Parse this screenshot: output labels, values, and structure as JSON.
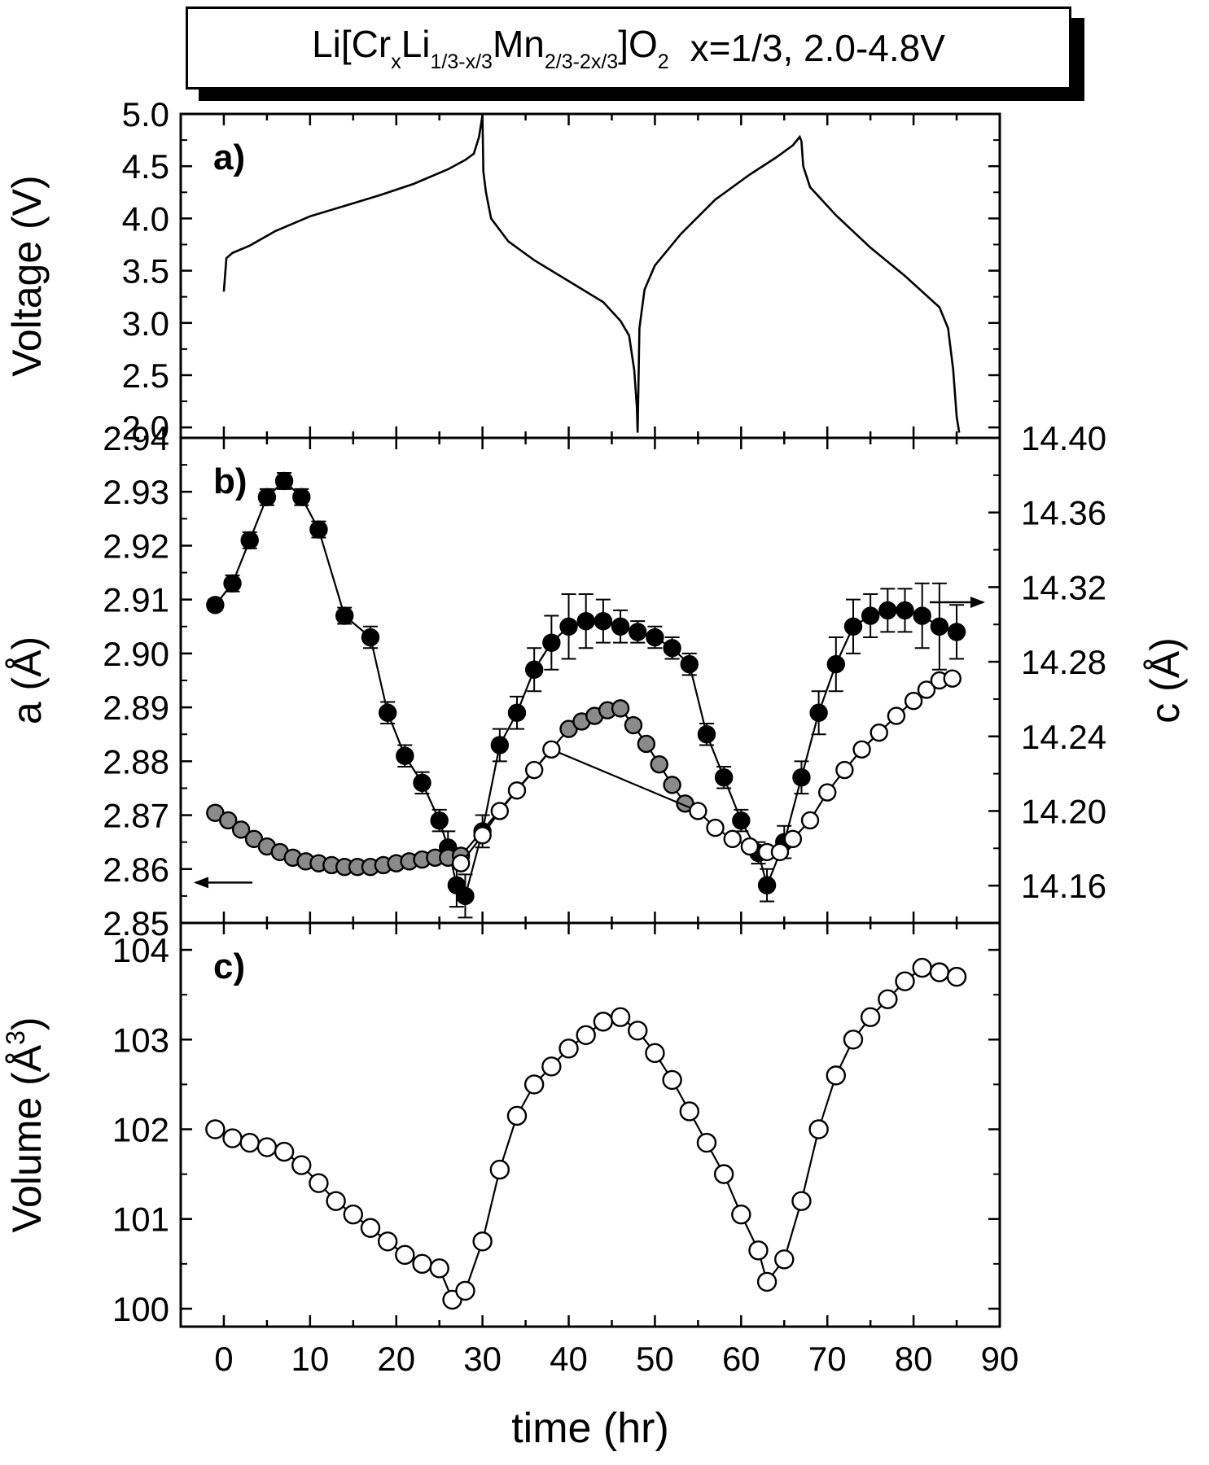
{
  "title": {
    "prefix": "Li[Cr",
    "sub1": "x",
    "mid1": "Li",
    "sub2": "1/3-x/3",
    "mid2": "Mn",
    "sub3": "2/3-2x/3",
    "mid3": "]O",
    "sub4": "2",
    "suffix": "x=1/3, 2.0-4.8V"
  },
  "chart_data": [
    {
      "panel_label": "a)",
      "type": "line",
      "ylabel": "Voltage (V)",
      "ylim": [
        1.9,
        5.0
      ],
      "yticks": [
        "2.0",
        "2.5",
        "3.0",
        "3.5",
        "4.0",
        "4.5",
        "5.0"
      ],
      "xlim": [
        -5,
        90
      ],
      "series": [
        {
          "x": [
            0,
            0.3,
            1,
            3,
            6,
            10,
            14,
            18,
            22,
            26,
            28,
            29,
            29.6,
            30,
            30.1,
            30.4,
            31,
            33,
            36,
            40,
            44,
            46,
            47,
            47.6,
            47.9,
            48,
            48.2,
            48.8,
            50,
            53,
            57,
            61,
            64,
            66,
            66.8,
            67,
            67.2,
            68,
            71,
            75,
            79,
            83,
            84,
            84.6,
            85,
            85.3
          ],
          "y": [
            3.3,
            3.62,
            3.67,
            3.74,
            3.88,
            4.02,
            4.12,
            4.22,
            4.33,
            4.47,
            4.56,
            4.62,
            4.78,
            4.99,
            4.45,
            4.25,
            4.0,
            3.78,
            3.6,
            3.4,
            3.2,
            3.02,
            2.88,
            2.55,
            2.2,
            1.95,
            2.95,
            3.32,
            3.55,
            3.85,
            4.18,
            4.42,
            4.58,
            4.7,
            4.78,
            4.74,
            4.5,
            4.3,
            4.03,
            3.72,
            3.45,
            3.15,
            2.95,
            2.55,
            2.1,
            1.95
          ]
        }
      ]
    },
    {
      "panel_label": "b)",
      "type": "scatter",
      "ylabel": "a (Å)",
      "ylabel_right": "c (Å)",
      "ylim": [
        2.85,
        2.94
      ],
      "yticks": [
        "2.85",
        "2.86",
        "2.87",
        "2.88",
        "2.89",
        "2.90",
        "2.91",
        "2.92",
        "2.93",
        "2.94"
      ],
      "ylim_right": [
        14.14,
        14.4
      ],
      "yticks_right": [
        "14.16",
        "14.20",
        "14.24",
        "14.28",
        "14.32",
        "14.36",
        "14.40"
      ],
      "xlim": [
        -5,
        90
      ],
      "series": [
        {
          "axis": "left",
          "marker": "filled",
          "x": [
            -1,
            1,
            3,
            5,
            7,
            9,
            11,
            14,
            17,
            19,
            21,
            23,
            25,
            26,
            27,
            28,
            30,
            32,
            34,
            36,
            38,
            40,
            42,
            44,
            46,
            48,
            50,
            52,
            54,
            56,
            58,
            60,
            62,
            63,
            65,
            67,
            69,
            71,
            73,
            75,
            77,
            79,
            81,
            83,
            85
          ],
          "y": [
            2.909,
            2.913,
            2.921,
            2.929,
            2.932,
            2.929,
            2.923,
            2.907,
            2.903,
            2.889,
            2.881,
            2.876,
            2.869,
            2.864,
            2.857,
            2.855,
            2.867,
            2.883,
            2.889,
            2.897,
            2.902,
            2.905,
            2.906,
            2.906,
            2.905,
            2.904,
            2.903,
            2.901,
            2.898,
            2.885,
            2.877,
            2.869,
            2.863,
            2.857,
            2.865,
            2.877,
            2.889,
            2.898,
            2.905,
            2.907,
            2.908,
            2.908,
            2.907,
            2.905,
            2.904
          ],
          "err": [
            0.001,
            0.0015,
            0.0015,
            0.0015,
            0.0015,
            0.0015,
            0.0015,
            0.0015,
            0.002,
            0.002,
            0.002,
            0.002,
            0.002,
            0.003,
            0.004,
            0.004,
            0.003,
            0.003,
            0.003,
            0.004,
            0.005,
            0.006,
            0.005,
            0.004,
            0.003,
            0.002,
            0.002,
            0.002,
            0.002,
            0.002,
            0.002,
            0.002,
            0.002,
            0.003,
            0.003,
            0.003,
            0.004,
            0.005,
            0.005,
            0.004,
            0.004,
            0.004,
            0.006,
            0.008,
            0.005
          ]
        },
        {
          "axis": "right",
          "marker": "gray",
          "x": [
            -1,
            0.5,
            2,
            3.5,
            5,
            6.5,
            8,
            9.5,
            11,
            12.5,
            14,
            15.5,
            17,
            18.5,
            20,
            21.5,
            23,
            24.5,
            26,
            27.5,
            40,
            41.5,
            43,
            44.5,
            46,
            47.5,
            49,
            50.5,
            52,
            53.5
          ],
          "y": [
            14.199,
            14.195,
            14.19,
            14.185,
            14.181,
            14.178,
            14.175,
            14.173,
            14.172,
            14.171,
            14.17,
            14.17,
            14.17,
            14.171,
            14.172,
            14.173,
            14.174,
            14.175,
            14.175,
            14.176,
            14.244,
            14.248,
            14.251,
            14.254,
            14.255,
            14.246,
            14.236,
            14.225,
            14.214,
            14.204
          ]
        },
        {
          "axis": "right",
          "marker": "open",
          "x": [
            27.5,
            30,
            32,
            34,
            36,
            38,
            55,
            57,
            59,
            61,
            63,
            64.5,
            66,
            68,
            70,
            72,
            74,
            76,
            78,
            80,
            81.5,
            83,
            84.5
          ],
          "y": [
            14.172,
            14.187,
            14.2,
            14.211,
            14.222,
            14.233,
            14.2,
            14.191,
            14.185,
            14.181,
            14.178,
            14.178,
            14.185,
            14.195,
            14.21,
            14.222,
            14.233,
            14.242,
            14.251,
            14.259,
            14.265,
            14.27,
            14.271
          ]
        }
      ],
      "arrows": [
        "left-axis",
        "right-axis"
      ]
    },
    {
      "panel_label": "c)",
      "type": "line",
      "ylabel": "Volume (Å",
      "ylabel_sup": "3",
      "ylabel_close": ")",
      "ylim": [
        99.8,
        104.3
      ],
      "yticks": [
        "100",
        "101",
        "102",
        "103",
        "104"
      ],
      "xlim": [
        -5,
        90
      ],
      "xticks": [
        "0",
        "10",
        "20",
        "30",
        "40",
        "50",
        "60",
        "70",
        "80",
        "90"
      ],
      "xlabel": "time (hr)",
      "series": [
        {
          "marker": "open-circle",
          "x": [
            -1,
            1,
            3,
            5,
            7,
            9,
            11,
            13,
            15,
            17,
            19,
            21,
            23,
            25,
            26.5,
            28,
            30,
            32,
            34,
            36,
            38,
            40,
            42,
            44,
            46,
            48,
            50,
            52,
            54,
            56,
            58,
            60,
            62,
            63,
            65,
            67,
            69,
            71,
            73,
            75,
            77,
            79,
            81,
            83,
            85
          ],
          "y": [
            102.0,
            101.9,
            101.85,
            101.8,
            101.75,
            101.6,
            101.4,
            101.2,
            101.05,
            100.9,
            100.75,
            100.6,
            100.5,
            100.45,
            100.1,
            100.2,
            100.75,
            101.55,
            102.15,
            102.5,
            102.7,
            102.9,
            103.05,
            103.2,
            103.25,
            103.1,
            102.85,
            102.55,
            102.2,
            101.85,
            101.5,
            101.05,
            100.65,
            100.3,
            100.55,
            101.2,
            102.0,
            102.6,
            103.0,
            103.25,
            103.45,
            103.65,
            103.8,
            103.75,
            103.7
          ]
        }
      ]
    }
  ]
}
